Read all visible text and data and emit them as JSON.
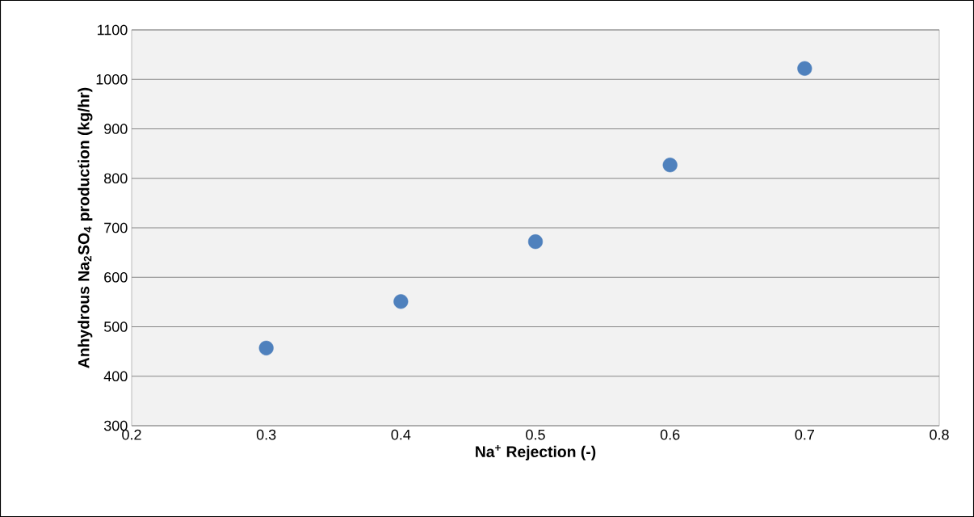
{
  "chart_data": {
    "type": "scatter",
    "xlabel": "Na$^{+}$ Rejection (-)",
    "ylabel": "Anhydrous Na$_{2}$SO$_{4}$ production (kg/hr)",
    "x": [
      0.3,
      0.4,
      0.5,
      0.6,
      0.7
    ],
    "series": [
      {
        "color": "#4f81bd",
        "values": [
          457,
          551,
          672,
          827,
          1022
        ]
      }
    ],
    "xlim": [
      0.2,
      0.8
    ],
    "xticks": [
      0.2,
      0.3,
      0.4,
      0.5,
      0.6,
      0.7,
      0.8
    ],
    "ylim": [
      300,
      1100
    ],
    "yticks": [
      300,
      400,
      500,
      600,
      700,
      800,
      900,
      1000,
      1100
    ],
    "grid": "y",
    "marker": "circle"
  }
}
